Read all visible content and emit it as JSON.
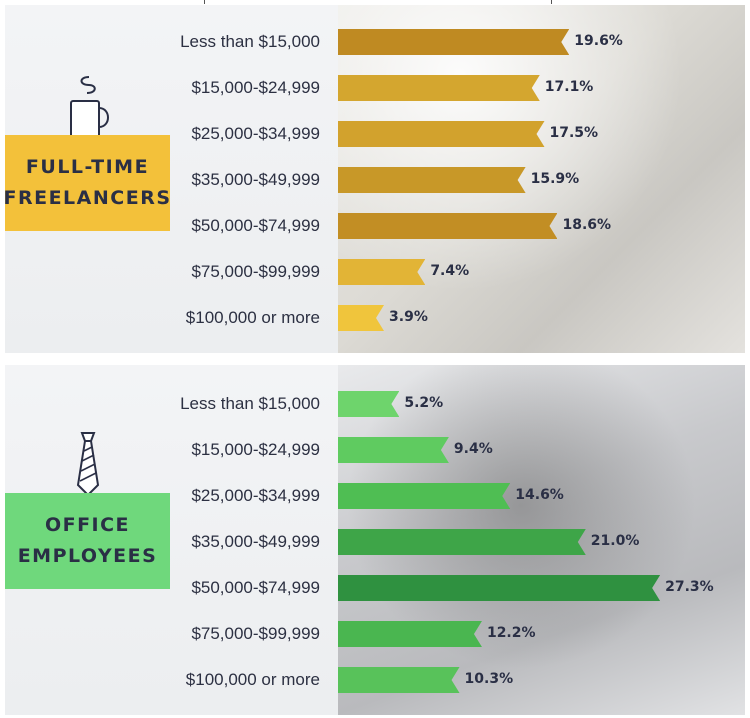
{
  "chart_data": [
    {
      "type": "bar",
      "orientation": "horizontal",
      "title_lines": [
        "FULL-TIME",
        "FREELANCERS"
      ],
      "icon": "coffee-mug-icon",
      "categories": [
        "Less than $15,000",
        "$15,000-$24,999",
        "$25,000-$34,999",
        "$35,000-$49,999",
        "$50,000-$74,999",
        "$75,000-$99,999",
        "$100,000 or more"
      ],
      "values": [
        19.6,
        17.1,
        17.5,
        15.9,
        18.6,
        7.4,
        3.9
      ],
      "value_labels": [
        "19.6%",
        "17.1%",
        "17.5%",
        "15.9%",
        "18.6%",
        "7.4%",
        "3.9%"
      ],
      "bar_colors": [
        "#bf8a22",
        "#d4a62f",
        "#d2a22d",
        "#c89828",
        "#c28e24",
        "#e2b436",
        "#f0c53c"
      ],
      "xlim": [
        0,
        30
      ],
      "grid": false,
      "legend": "none"
    },
    {
      "type": "bar",
      "orientation": "horizontal",
      "title_lines": [
        "OFFICE",
        "EMPLOYEES"
      ],
      "icon": "necktie-icon",
      "categories": [
        "Less than $15,000",
        "$15,000-$24,999",
        "$25,000-$34,999",
        "$35,000-$49,999",
        "$50,000-$74,999",
        "$75,000-$99,999",
        "$100,000 or more"
      ],
      "values": [
        5.2,
        9.4,
        14.6,
        21.0,
        27.3,
        12.2,
        10.3
      ],
      "value_labels": [
        "5.2%",
        "9.4%",
        "14.6%",
        "21.0%",
        "27.3%",
        "12.2%",
        "10.3%"
      ],
      "bar_colors": [
        "#6ed46c",
        "#5fcb60",
        "#4fbe53",
        "#3ea548",
        "#2f9140",
        "#4ab650",
        "#58c25a"
      ],
      "xlim": [
        0,
        30
      ],
      "grid": false,
      "legend": "none"
    }
  ]
}
